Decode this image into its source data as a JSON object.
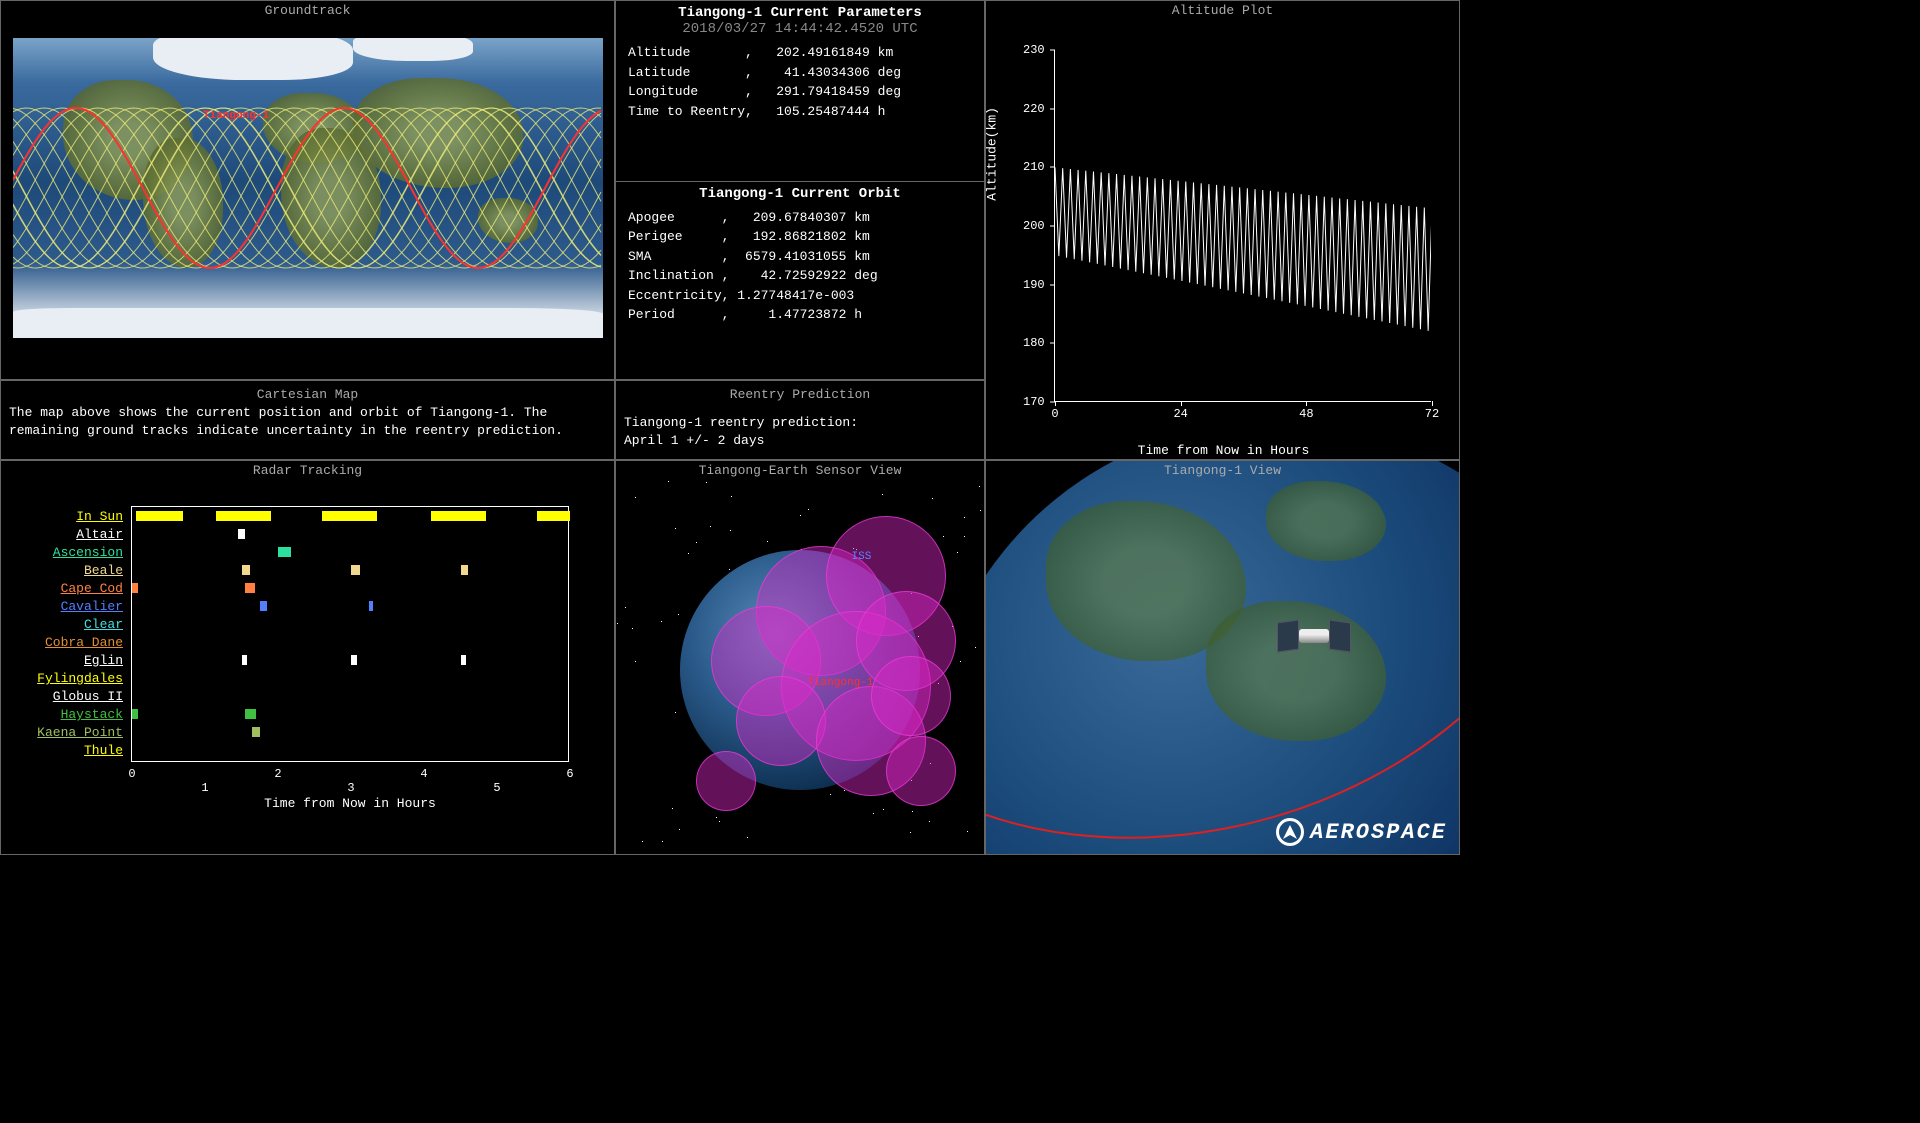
{
  "panels": {
    "groundtrack": {
      "title": "Groundtrack",
      "satellite_label": "Tiangong-1",
      "satellite_label_color": "#ff3030"
    },
    "parameters": {
      "title": "Tiangong-1 Current Parameters",
      "timestamp": "2018/03/27 14:44:42.4520 UTC",
      "rows": [
        {
          "label": "Altitude       ,",
          "value": "   202.49161849 km"
        },
        {
          "label": "Latitude       ,",
          "value": "    41.43034306 deg"
        },
        {
          "label": "Longitude      ,",
          "value": "   291.79418459 deg"
        },
        {
          "label": "Time to Reentry,",
          "value": "   105.25487444 h"
        }
      ]
    },
    "orbit": {
      "title": "Tiangong-1 Current Orbit",
      "rows": [
        {
          "label": "Apogee      ,",
          "value": "   209.67840307 km"
        },
        {
          "label": "Perigee     ,",
          "value": "   192.86821802 km"
        },
        {
          "label": "SMA         ,",
          "value": "  6579.41031055 km"
        },
        {
          "label": "Inclination ,",
          "value": "    42.72592922 deg"
        },
        {
          "label": "Eccentricity,",
          "value": " 1.27748417e-003"
        },
        {
          "label": "Period      ,",
          "value": "     1.47723872 h"
        }
      ]
    },
    "altitude_plot": {
      "title": "Altitude Plot",
      "ylabel": "Altitude(km)",
      "xlabel": "Time from Now in Hours",
      "ylim": [
        170,
        230
      ],
      "yticks": [
        170,
        180,
        190,
        200,
        210,
        220,
        230
      ],
      "xlim": [
        0,
        72
      ],
      "xticks": [
        0,
        24,
        48,
        72
      ],
      "line_color": "#ffffff",
      "oscillations": 49,
      "start_high": 210,
      "start_low": 195,
      "end_high": 203,
      "end_low": 182
    },
    "cartesian": {
      "title": "Cartesian Map",
      "text": "The map above shows the current position and orbit of Tiangong-1.  The remaining ground tracks indicate uncertainty in the reentry prediction."
    },
    "reentry": {
      "title": "Reentry Prediction",
      "line1": "Tiangong-1 reentry prediction:",
      "line2": "April 1 +/- 2 days"
    },
    "radar": {
      "title": "Radar Tracking",
      "xlabel": "Time from Now in Hours",
      "xlim": [
        0,
        6
      ],
      "xticks_top": [
        0,
        2,
        4,
        6
      ],
      "xticks_bottom": [
        1,
        3,
        5
      ],
      "stations": [
        {
          "name": "In Sun",
          "color": "#ffff00"
        },
        {
          "name": "Altair",
          "color": "#ffffff"
        },
        {
          "name": "Ascension",
          "color": "#2ee0a0"
        },
        {
          "name": "Beale",
          "color": "#f0d890"
        },
        {
          "name": "Cape Cod",
          "color": "#ff8040"
        },
        {
          "name": "Cavalier",
          "color": "#5080ff"
        },
        {
          "name": "Clear",
          "color": "#40e0e0"
        },
        {
          "name": "Cobra Dane",
          "color": "#e09030"
        },
        {
          "name": "Eglin",
          "color": "#ffffff"
        },
        {
          "name": "Fylingdales",
          "color": "#ffff00"
        },
        {
          "name": "Globus II",
          "color": "#ffffff"
        },
        {
          "name": "Haystack",
          "color": "#40c040"
        },
        {
          "name": "Kaena Point",
          "color": "#a0c060"
        },
        {
          "name": "Thule",
          "color": "#ffff00"
        }
      ],
      "bars": [
        {
          "row": 0,
          "start": 0.05,
          "end": 0.7,
          "color": "#ffff00"
        },
        {
          "row": 0,
          "start": 1.15,
          "end": 1.9,
          "color": "#ffff00"
        },
        {
          "row": 0,
          "start": 2.6,
          "end": 3.35,
          "color": "#ffff00"
        },
        {
          "row": 0,
          "start": 4.1,
          "end": 4.85,
          "color": "#ffff00"
        },
        {
          "row": 0,
          "start": 5.55,
          "end": 6.0,
          "color": "#ffff00"
        },
        {
          "row": 1,
          "start": 1.45,
          "end": 1.55,
          "color": "#ffffff"
        },
        {
          "row": 2,
          "start": 2.0,
          "end": 2.18,
          "color": "#2ee0a0"
        },
        {
          "row": 3,
          "start": 1.5,
          "end": 1.62,
          "color": "#f0d890"
        },
        {
          "row": 3,
          "start": 3.0,
          "end": 3.12,
          "color": "#f0d890"
        },
        {
          "row": 3,
          "start": 4.5,
          "end": 4.6,
          "color": "#f0d890"
        },
        {
          "row": 4,
          "start": 0.0,
          "end": 0.08,
          "color": "#ff8040"
        },
        {
          "row": 4,
          "start": 1.55,
          "end": 1.68,
          "color": "#ff8040"
        },
        {
          "row": 5,
          "start": 1.75,
          "end": 1.85,
          "color": "#5080ff"
        },
        {
          "row": 5,
          "start": 3.25,
          "end": 3.3,
          "color": "#5080ff"
        },
        {
          "row": 8,
          "start": 1.5,
          "end": 1.58,
          "color": "#ffffff"
        },
        {
          "row": 8,
          "start": 3.0,
          "end": 3.08,
          "color": "#ffffff"
        },
        {
          "row": 8,
          "start": 4.5,
          "end": 4.58,
          "color": "#ffffff"
        },
        {
          "row": 11,
          "start": 0.0,
          "end": 0.08,
          "color": "#40c040"
        },
        {
          "row": 11,
          "start": 1.55,
          "end": 1.7,
          "color": "#40c040"
        },
        {
          "row": 12,
          "start": 1.65,
          "end": 1.75,
          "color": "#a0c060"
        }
      ]
    },
    "sensor": {
      "title": "Tiangong-Earth Sensor View",
      "sat_label": "Tiangong-1",
      "iss_label": "ISS"
    },
    "view3d": {
      "title": "Tiangong-1 View"
    }
  },
  "logo_text": "AEROSPACE",
  "colors": {
    "background": "#000000",
    "border": "#666666",
    "text": "#ffffff",
    "title": "#aaaaaa",
    "groundtrack_future": "#e8e878",
    "groundtrack_current": "#ff3030",
    "sensor_cone": "#dc28c8"
  }
}
